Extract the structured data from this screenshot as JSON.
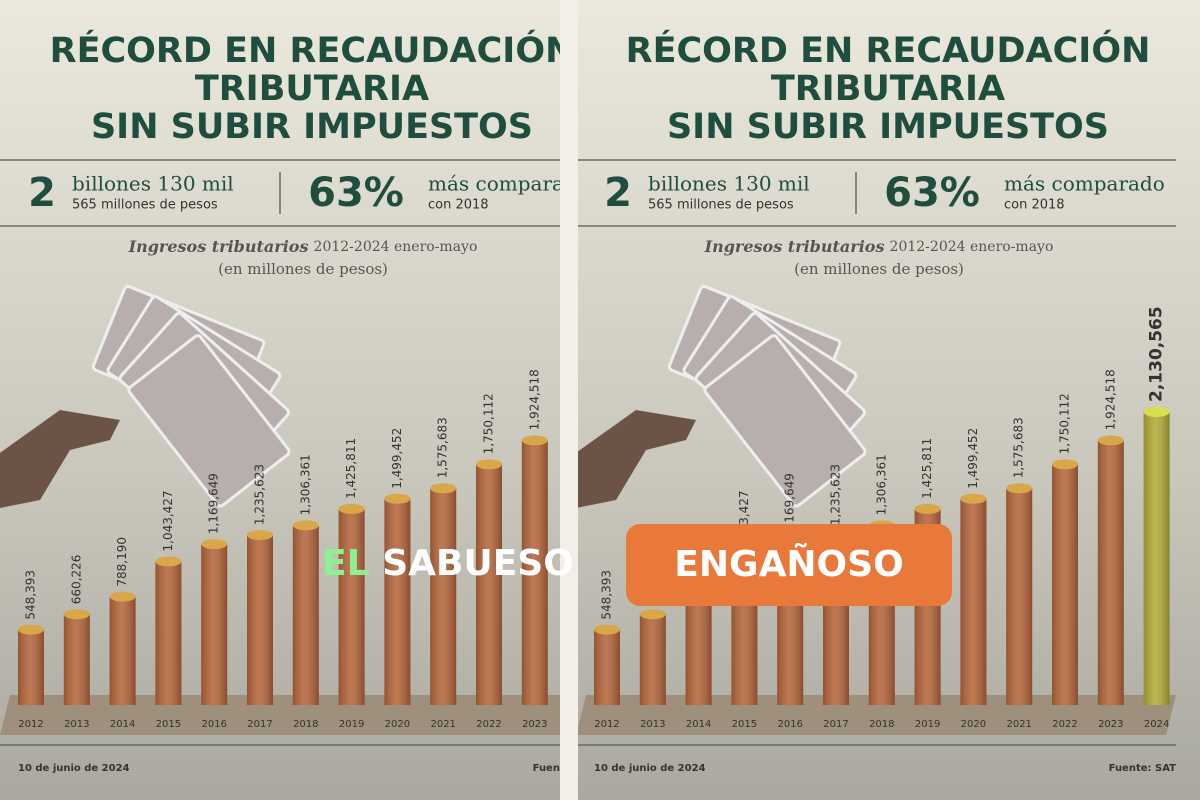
{
  "chart_data": {
    "type": "bar",
    "title": [
      "RÉCORD EN RECAUDACIÓN",
      "TRIBUTARIA",
      "SIN SUBIR IMPUESTOS"
    ],
    "stat_1": {
      "number": "2",
      "text": "billones 130 mil",
      "subtext": "565 millones de pesos"
    },
    "stat_2": {
      "number": "63%",
      "text": "más comparado",
      "subtext": "con 2018"
    },
    "subtitle": {
      "italic": "Ingresos tributarios",
      "rest": "2012-2024 enero-mayo",
      "unit": "(en millones de pesos)"
    },
    "categories": [
      "2012",
      "2013",
      "2014",
      "2015",
      "2016",
      "2017",
      "2018",
      "2019",
      "2020",
      "2021",
      "2022",
      "2023",
      "2024"
    ],
    "values": [
      548393,
      660226,
      788190,
      1043427,
      1169649,
      1235623,
      1306361,
      1425811,
      1499452,
      1575683,
      1750112,
      1924518,
      2130565
    ],
    "value_labels": [
      "548,393",
      "660,226",
      "788,190",
      "1,043,427",
      "1,169,649",
      "1,235,623",
      "1,306,361",
      "1,425,811",
      "1,499,452",
      "1,575,683",
      "1,750,112",
      "1,924,518",
      "2,130,565"
    ],
    "colors": [
      "#b5663c",
      "#b5663c",
      "#b5663c",
      "#b5663c",
      "#b5663c",
      "#b5663c",
      "#b5663c",
      "#b5663c",
      "#b5663c",
      "#b5663c",
      "#b5663c",
      "#b5663c",
      "#b3ad3a"
    ],
    "date": "10 de junio de 2024",
    "source": "Fuente: SAT"
  },
  "overlay": {
    "brand_1": "EL",
    "brand_2": "SABUESO",
    "verdict": "ENGAÑOSO"
  }
}
